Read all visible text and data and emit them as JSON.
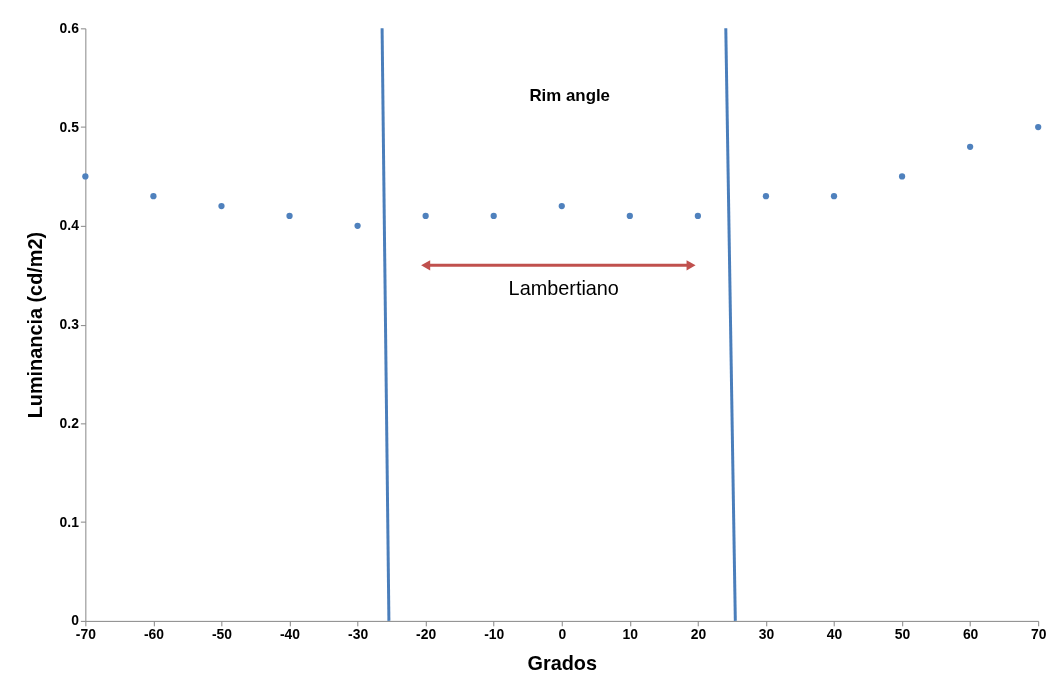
{
  "chart_data": {
    "type": "scatter",
    "xlabel": "Grados",
    "ylabel": "Luminancia (cd/m2)",
    "x": [
      -70,
      -60,
      -50,
      -40,
      -30,
      -20,
      -10,
      0,
      10,
      20,
      30,
      40,
      50,
      60,
      70
    ],
    "xlim": [
      -70,
      70
    ],
    "xticks": [
      -70,
      -60,
      -50,
      -40,
      -30,
      -20,
      -10,
      0,
      10,
      20,
      30,
      40,
      50,
      60,
      70
    ],
    "ylim": [
      0,
      0.6
    ],
    "yticks": [
      0,
      0.1,
      0.2,
      0.3,
      0.4,
      0.5,
      0.6
    ],
    "grid": false,
    "series": [
      {
        "color": "#4f81bd",
        "marker": "circle",
        "values": [
          0.45,
          0.43,
          0.42,
          0.41,
          0.4,
          0.41,
          0.41,
          0.42,
          0.41,
          0.41,
          0.43,
          0.43,
          0.45,
          0.48,
          0.5
        ]
      },
      {
        "type": "line",
        "color": "#4a7ebb",
        "x": [
          -26.4,
          -25.4
        ],
        "values": [
          0.6,
          0
        ]
      },
      {
        "type": "line",
        "color": "#4a7ebb",
        "x": [
          24.1,
          25.5
        ],
        "values": [
          0.6,
          0
        ]
      },
      {
        "type": "line",
        "color": "#c0504d",
        "marker": "triangle",
        "x": [
          -20,
          19
        ],
        "values": [
          0.36,
          0.36
        ]
      }
    ],
    "annotations": [
      "Rim angle",
      "Lambertiano"
    ]
  }
}
